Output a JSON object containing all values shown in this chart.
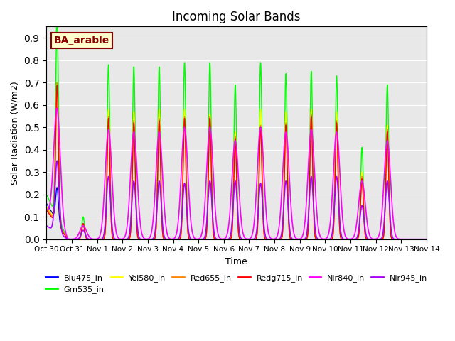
{
  "title": "Incoming Solar Bands",
  "xlabel": "Time",
  "ylabel": "Solar Radiation (W/m2)",
  "annotation": "BA_arable",
  "ylim": [
    0,
    0.95
  ],
  "yticks": [
    0.0,
    0.1,
    0.2,
    0.3,
    0.4,
    0.5,
    0.6,
    0.7,
    0.8,
    0.9
  ],
  "xtick_labels": [
    "Oct 30",
    "Oct 31",
    "Nov 1",
    "Nov 2",
    "Nov 3",
    "Nov 4",
    "Nov 5",
    "Nov 6",
    "Nov 7",
    "Nov 8",
    "Nov 9",
    "Nov 10",
    "Nov 11",
    "Nov 12",
    "Nov 13",
    "Nov 14"
  ],
  "series_order": [
    "Blu475_in",
    "Grn535_in",
    "Yel580_in",
    "Red655_in",
    "Redg715_in",
    "Nir840_in",
    "Nir945_in"
  ],
  "series": {
    "Blu475_in": {
      "color": "#0000ff",
      "linewidth": 1.0,
      "sigma": 0.055
    },
    "Grn535_in": {
      "color": "#00ff00",
      "linewidth": 1.0,
      "sigma": 0.055
    },
    "Yel580_in": {
      "color": "#ffff00",
      "linewidth": 1.0,
      "sigma": 0.055
    },
    "Red655_in": {
      "color": "#ff8800",
      "linewidth": 1.0,
      "sigma": 0.055
    },
    "Redg715_in": {
      "color": "#ff0000",
      "linewidth": 1.0,
      "sigma": 0.055
    },
    "Nir840_in": {
      "color": "#ff00ff",
      "linewidth": 1.2,
      "sigma": 0.13
    },
    "Nir945_in": {
      "color": "#aa00ff",
      "linewidth": 1.2,
      "sigma": 0.08
    }
  },
  "legend_ncol": 6,
  "background_color": "#e8e8e8",
  "day_peaks": {
    "Blu475_in": [
      0.15,
      0.07,
      0.0,
      0.0,
      0.0,
      0.0,
      0.0,
      0.0,
      0.0,
      0.0,
      0.0,
      0.0,
      0.0,
      0.0
    ],
    "Grn535_in": [
      0.9,
      0.1,
      0.78,
      0.77,
      0.77,
      0.79,
      0.79,
      0.69,
      0.79,
      0.74,
      0.75,
      0.73,
      0.41,
      0.69
    ],
    "Yel580_in": [
      0.62,
      0.07,
      0.58,
      0.57,
      0.58,
      0.58,
      0.56,
      0.48,
      0.58,
      0.57,
      0.58,
      0.57,
      0.3,
      0.51
    ],
    "Red655_in": [
      0.63,
      0.07,
      0.55,
      0.53,
      0.54,
      0.55,
      0.55,
      0.46,
      0.51,
      0.52,
      0.56,
      0.53,
      0.28,
      0.49
    ],
    "Redg715_in": [
      0.62,
      0.07,
      0.54,
      0.52,
      0.53,
      0.54,
      0.54,
      0.45,
      0.5,
      0.51,
      0.55,
      0.52,
      0.27,
      0.48
    ],
    "Nir840_in": [
      0.52,
      0.06,
      0.49,
      0.48,
      0.48,
      0.5,
      0.5,
      0.44,
      0.5,
      0.48,
      0.49,
      0.48,
      0.26,
      0.44
    ],
    "Nir945_in": [
      0.32,
      0.04,
      0.28,
      0.26,
      0.26,
      0.25,
      0.26,
      0.26,
      0.25,
      0.26,
      0.28,
      0.28,
      0.15,
      0.26
    ]
  },
  "day_centers": [
    0.42,
    1.45,
    2.45,
    3.45,
    4.45,
    5.45,
    6.45,
    7.45,
    8.45,
    9.45,
    10.45,
    11.45,
    12.45,
    13.45
  ],
  "oct30_decline": true,
  "oct31_decline": true
}
